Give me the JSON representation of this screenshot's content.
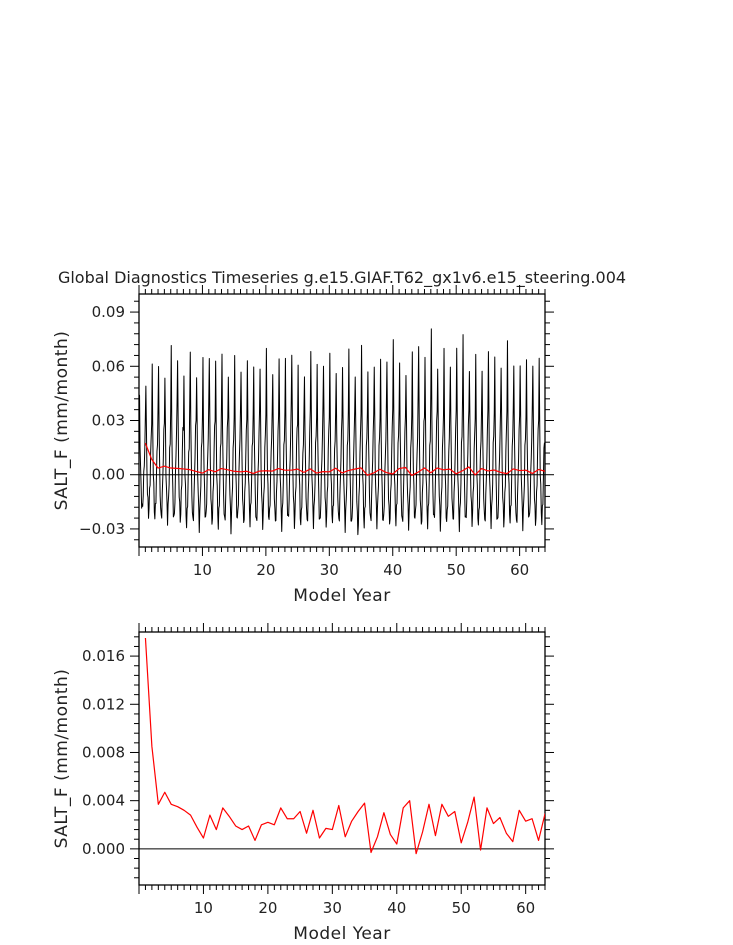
{
  "chart_data": [
    {
      "type": "line",
      "title": "Global Diagnostics Timeseries g.e15.GIAF.T62_gx1v6.e15_steering.004",
      "xlabel": "Model Year",
      "ylabel": "SALT_F (mm/month)",
      "xlim": [
        0,
        64
      ],
      "ylim": [
        -0.04,
        0.1
      ],
      "x_ticks": [
        10,
        20,
        30,
        40,
        50,
        60
      ],
      "y_ticks": [
        -0.03,
        0.0,
        0.03,
        0.06,
        0.09
      ],
      "y_tick_labels": [
        "−0.03",
        "0.00",
        "0.03",
        "0.06",
        "0.09"
      ],
      "zero_line": true,
      "series": [
        {
          "color": "#000000",
          "sampling": "monthly",
          "note_x": "monthly values, year 1 to 64",
          "monthly_annual_peak": [
            0.041,
            0.053,
            0.058,
            0.061,
            0.055,
            0.068,
            0.067,
            0.052,
            0.068,
            0.056,
            0.061,
            0.068,
            0.061,
            0.066,
            0.057,
            0.062,
            0.06,
            0.062,
            0.058,
            0.062,
            0.066,
            0.058,
            0.064,
            0.062,
            0.07,
            0.057,
            0.056,
            0.069,
            0.058,
            0.064,
            0.064,
            0.057,
            0.061,
            0.066,
            0.058,
            0.069,
            0.057,
            0.062,
            0.06,
            0.066,
            0.073,
            0.061,
            0.058,
            0.064,
            0.074,
            0.064,
            0.079,
            0.062,
            0.066,
            0.062,
            0.07,
            0.075,
            0.061,
            0.063,
            0.059,
            0.069,
            0.062,
            0.063,
            0.071,
            0.061,
            0.062,
            0.06,
            0.064,
            0.062
          ],
          "monthly_annual_trough": [
            -0.02,
            -0.022,
            -0.024,
            -0.025,
            -0.024,
            -0.026,
            -0.025,
            -0.028,
            -0.027,
            -0.028,
            -0.026,
            -0.027,
            -0.028,
            -0.027,
            -0.029,
            -0.026,
            -0.027,
            -0.026,
            -0.028,
            -0.027,
            -0.026,
            -0.027,
            -0.028,
            -0.026,
            -0.027,
            -0.028,
            -0.027,
            -0.026,
            -0.028,
            -0.027,
            -0.026,
            -0.027,
            -0.028,
            -0.029,
            -0.032,
            -0.028,
            -0.027,
            -0.026,
            -0.028,
            -0.027,
            -0.026,
            -0.028,
            -0.027,
            -0.026,
            -0.028,
            -0.027,
            -0.026,
            -0.028,
            -0.027,
            -0.026,
            -0.028,
            -0.027,
            -0.026,
            -0.028,
            -0.027,
            -0.026,
            -0.028,
            -0.027,
            -0.026,
            -0.028,
            -0.027,
            -0.026,
            -0.027,
            -0.026
          ]
        },
        {
          "color": "#ff0000",
          "sampling": "annual",
          "x": [
            1,
            2,
            3,
            4,
            5,
            6,
            7,
            8,
            9,
            10,
            11,
            12,
            13,
            14,
            15,
            16,
            17,
            18,
            19,
            20,
            21,
            22,
            23,
            24,
            25,
            26,
            27,
            28,
            29,
            30,
            31,
            32,
            33,
            34,
            35,
            36,
            37,
            38,
            39,
            40,
            41,
            42,
            43,
            44,
            45,
            46,
            47,
            48,
            49,
            50,
            51,
            52,
            53,
            54,
            55,
            56,
            57,
            58,
            59,
            60,
            61,
            62,
            63,
            64
          ],
          "values": [
            0.0175,
            0.0085,
            0.0037,
            0.0047,
            0.0037,
            0.0035,
            0.0032,
            0.0028,
            0.0018,
            0.0009,
            0.0028,
            0.0016,
            0.0034,
            0.0027,
            0.0019,
            0.0016,
            0.0019,
            0.0007,
            0.002,
            0.0022,
            0.002,
            0.0034,
            0.0025,
            0.0025,
            0.0031,
            0.0013,
            0.0032,
            0.0009,
            0.0017,
            0.0016,
            0.0036,
            0.001,
            0.0023,
            0.0031,
            0.0038,
            -0.0003,
            0.001,
            0.003,
            0.0012,
            0.0004,
            0.0034,
            0.004,
            -0.0004,
            0.0014,
            0.0037,
            0.0011,
            0.0037,
            0.0027,
            0.0031,
            0.0005,
            0.0022,
            0.0043,
            -0.0001,
            0.0034,
            0.0021,
            0.0026,
            0.0013,
            0.0006,
            0.0032,
            0.0023,
            0.0025,
            0.0007,
            0.0029,
            0.0019
          ]
        }
      ]
    },
    {
      "type": "line",
      "xlabel": "Model Year",
      "ylabel": "SALT_F (mm/month)",
      "xlim": [
        0,
        63
      ],
      "ylim": [
        -0.003,
        0.018
      ],
      "x_ticks": [
        10,
        20,
        30,
        40,
        50,
        60
      ],
      "y_ticks": [
        0.0,
        0.004,
        0.008,
        0.012,
        0.016
      ],
      "y_tick_labels": [
        "0.000",
        "0.004",
        "0.008",
        "0.012",
        "0.016"
      ],
      "zero_line": true,
      "series": [
        {
          "color": "#ff0000",
          "sampling": "annual",
          "x": [
            1,
            2,
            3,
            4,
            5,
            6,
            7,
            8,
            9,
            10,
            11,
            12,
            13,
            14,
            15,
            16,
            17,
            18,
            19,
            20,
            21,
            22,
            23,
            24,
            25,
            26,
            27,
            28,
            29,
            30,
            31,
            32,
            33,
            34,
            35,
            36,
            37,
            38,
            39,
            40,
            41,
            42,
            43,
            44,
            45,
            46,
            47,
            48,
            49,
            50,
            51,
            52,
            53,
            54,
            55,
            56,
            57,
            58,
            59,
            60,
            61,
            62,
            63,
            64
          ],
          "values": [
            0.0175,
            0.0085,
            0.0037,
            0.0047,
            0.0037,
            0.0035,
            0.0032,
            0.0028,
            0.0018,
            0.0009,
            0.0028,
            0.0016,
            0.0034,
            0.0027,
            0.0019,
            0.0016,
            0.0019,
            0.0007,
            0.002,
            0.0022,
            0.002,
            0.0034,
            0.0025,
            0.0025,
            0.0031,
            0.0013,
            0.0032,
            0.0009,
            0.0017,
            0.0016,
            0.0036,
            0.001,
            0.0023,
            0.0031,
            0.0038,
            -0.0003,
            0.001,
            0.003,
            0.0012,
            0.0004,
            0.0034,
            0.004,
            -0.0004,
            0.0014,
            0.0037,
            0.0011,
            0.0037,
            0.0027,
            0.0031,
            0.0005,
            0.0022,
            0.0043,
            -0.0001,
            0.0034,
            0.0021,
            0.0026,
            0.0013,
            0.0006,
            0.0032,
            0.0023,
            0.0025,
            0.0007,
            0.0029,
            0.0019
          ]
        }
      ]
    }
  ]
}
